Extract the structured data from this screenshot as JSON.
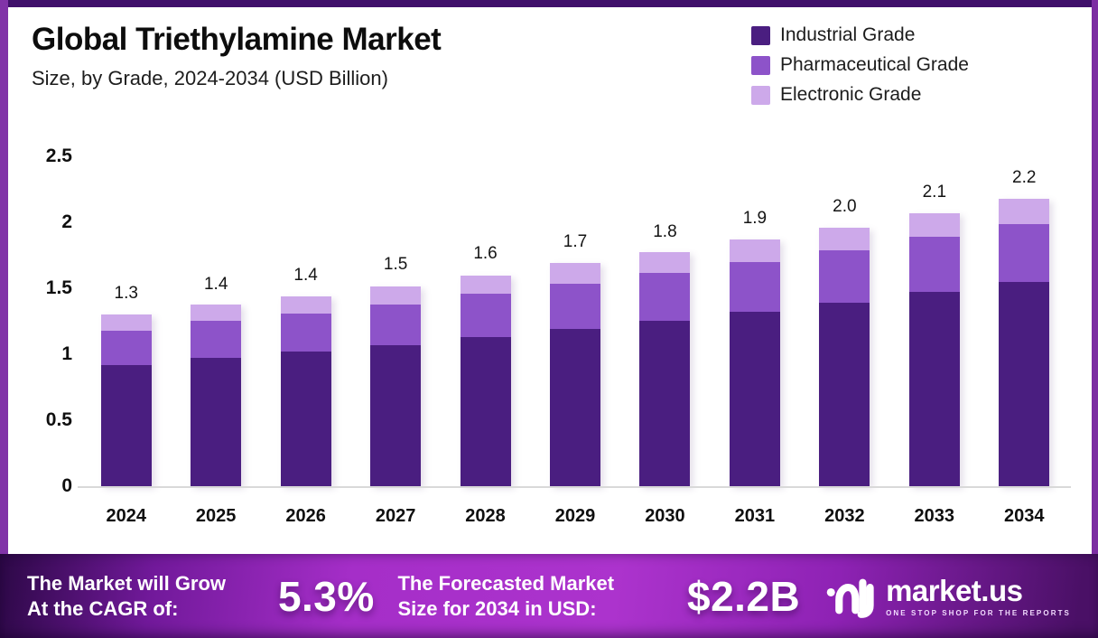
{
  "header": {
    "title": "Global Triethylamine Market",
    "subtitle": "Size, by Grade, 2024-2034 (USD Billion)"
  },
  "chart_data": {
    "type": "bar",
    "stacked": true,
    "title": "Global Triethylamine Market Size, by Grade, 2024-2034 (USD Billion)",
    "categories": [
      "2024",
      "2025",
      "2026",
      "2027",
      "2028",
      "2029",
      "2030",
      "2031",
      "2032",
      "2033",
      "2034"
    ],
    "series": [
      {
        "name": "Industrial Grade",
        "color": "#4a1e80",
        "values": [
          0.92,
          0.97,
          1.02,
          1.07,
          1.13,
          1.19,
          1.25,
          1.32,
          1.39,
          1.47,
          1.55
        ]
      },
      {
        "name": "Pharmaceutical Grade",
        "color": "#8d53c9",
        "values": [
          0.26,
          0.28,
          0.29,
          0.31,
          0.33,
          0.34,
          0.36,
          0.38,
          0.4,
          0.42,
          0.44
        ]
      },
      {
        "name": "Electronic Grade",
        "color": "#cda9ea",
        "values": [
          0.12,
          0.12,
          0.13,
          0.14,
          0.14,
          0.16,
          0.16,
          0.17,
          0.17,
          0.18,
          0.19
        ]
      }
    ],
    "totals": [
      "1.3",
      "1.4",
      "1.4",
      "1.5",
      "1.6",
      "1.7",
      "1.8",
      "1.9",
      "2.0",
      "2.1",
      "2.2"
    ],
    "ylim": [
      0,
      2.5
    ],
    "yticks": [
      2.5,
      2,
      1.5,
      1,
      0.5,
      0
    ],
    "grid": false,
    "legend_position": "top-right"
  },
  "banner": {
    "cagr_label_line1": "The Market will Grow",
    "cagr_label_line2": "At the CAGR of:",
    "cagr_value": "5.3%",
    "forecast_label_line1": "The Forecasted Market",
    "forecast_label_line2": "Size for 2034 in USD:",
    "forecast_value": "$2.2B",
    "logo_name": "market.us",
    "logo_tagline": "ONE STOP SHOP FOR THE REPORTS"
  },
  "colors": {
    "frame_top": "#40106b",
    "frame_side": "#8133a8",
    "banner_bright": "#ac33cd",
    "banner_dark": "#2c0846"
  }
}
